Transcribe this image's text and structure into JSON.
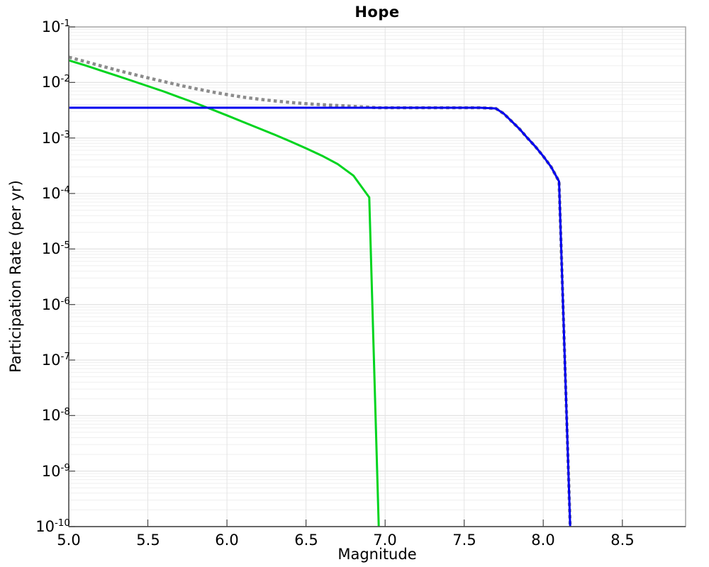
{
  "chart": {
    "title": "Hope",
    "xlabel": "Magnitude",
    "ylabel": "Participation Rate (per yr)"
  },
  "chart_data": {
    "type": "line",
    "title": "Hope",
    "xlabel": "Magnitude",
    "ylabel": "Participation Rate (per yr)",
    "x_range": [
      5.0,
      8.9
    ],
    "y_range": [
      1e-10,
      0.1
    ],
    "y_scale": "log",
    "x_ticks": [
      5.0,
      5.5,
      6.0,
      6.5,
      7.0,
      7.5,
      8.0,
      8.5
    ],
    "y_tick_exponents": [
      -1,
      -2,
      -3,
      -4,
      -5,
      -6,
      -7,
      -8,
      -9,
      -10
    ],
    "grid": true,
    "legend": "none",
    "series": [
      {
        "name": "gray-dotted-total",
        "color": "#8c8c8c",
        "style": "dotted",
        "width": 4.5,
        "points": [
          [
            5.0,
            0.0285
          ],
          [
            5.1,
            0.024
          ],
          [
            5.2,
            0.02
          ],
          [
            5.3,
            0.0168
          ],
          [
            5.4,
            0.0142
          ],
          [
            5.5,
            0.0121
          ],
          [
            5.6,
            0.0104
          ],
          [
            5.7,
            0.0089
          ],
          [
            5.8,
            0.00775
          ],
          [
            5.9,
            0.0068
          ],
          [
            6.0,
            0.00605
          ],
          [
            6.1,
            0.00545
          ],
          [
            6.2,
            0.005
          ],
          [
            6.3,
            0.00465
          ],
          [
            6.4,
            0.00437
          ],
          [
            6.5,
            0.00415
          ],
          [
            6.6,
            0.00398
          ],
          [
            6.7,
            0.00384
          ],
          [
            6.8,
            0.00371
          ],
          [
            6.9,
            0.00358
          ],
          [
            6.96,
            0.0035
          ],
          [
            7.3,
            0.0035
          ],
          [
            7.6,
            0.0035
          ],
          [
            7.7,
            0.0034
          ],
          [
            7.75,
            0.00275
          ],
          [
            7.8,
            0.002
          ],
          [
            7.85,
            0.00145
          ],
          [
            7.9,
            0.001
          ],
          [
            7.95,
            0.0007
          ],
          [
            8.0,
            0.00047
          ],
          [
            8.05,
            0.0003
          ],
          [
            8.1,
            0.000165
          ],
          [
            8.17,
            1e-10
          ]
        ]
      },
      {
        "name": "green-solid",
        "color": "#00d41f",
        "style": "solid",
        "width": 3,
        "points": [
          [
            5.0,
            0.025
          ],
          [
            5.1,
            0.0205
          ],
          [
            5.2,
            0.0165
          ],
          [
            5.3,
            0.0133
          ],
          [
            5.4,
            0.0107
          ],
          [
            5.5,
            0.0086
          ],
          [
            5.6,
            0.0069
          ],
          [
            5.7,
            0.0054
          ],
          [
            5.8,
            0.00425
          ],
          [
            5.9,
            0.0033
          ],
          [
            6.0,
            0.00255
          ],
          [
            6.1,
            0.00195
          ],
          [
            6.2,
            0.0015
          ],
          [
            6.3,
            0.00115
          ],
          [
            6.4,
            0.00087
          ],
          [
            6.5,
            0.00065
          ],
          [
            6.6,
            0.00048
          ],
          [
            6.7,
            0.00034
          ],
          [
            6.8,
            0.00021
          ],
          [
            6.9,
            8.5e-05
          ],
          [
            6.96,
            1e-10
          ]
        ]
      },
      {
        "name": "blue-solid",
        "color": "#0000ee",
        "style": "solid",
        "width": 3,
        "points": [
          [
            5.0,
            0.0035
          ],
          [
            7.6,
            0.0035
          ],
          [
            7.7,
            0.0034
          ],
          [
            7.75,
            0.00275
          ],
          [
            7.8,
            0.002
          ],
          [
            7.85,
            0.00145
          ],
          [
            7.9,
            0.001
          ],
          [
            7.95,
            0.0007
          ],
          [
            8.0,
            0.00047
          ],
          [
            8.05,
            0.0003
          ],
          [
            8.1,
            0.000165
          ],
          [
            8.17,
            1e-10
          ]
        ]
      }
    ]
  }
}
